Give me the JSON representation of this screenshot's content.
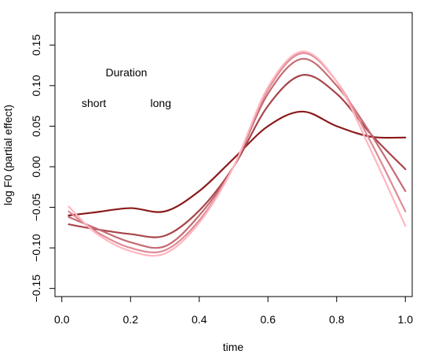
{
  "chart_data": {
    "type": "line",
    "title": "",
    "xlabel": "time",
    "ylabel": "log F0 (partial effect)",
    "xlim": [
      -0.02,
      1.02
    ],
    "ylim": [
      -0.16,
      0.19
    ],
    "xticks": [
      0.0,
      0.2,
      0.4,
      0.6,
      0.8,
      1.0
    ],
    "xtick_labels": [
      "0.0",
      "0.2",
      "0.4",
      "0.6",
      "0.8",
      "1.0"
    ],
    "yticks": [
      -0.15,
      -0.1,
      -0.05,
      0.0,
      0.05,
      0.1,
      0.15
    ],
    "ytick_labels": [
      "−0.15",
      "−0.10",
      "−0.05",
      "0.00",
      "0.05",
      "0.10",
      "0.15"
    ],
    "grid": false,
    "legend": {
      "title": "Duration",
      "low_label": "short",
      "high_label": "long",
      "placement": "top-left",
      "gradient": [
        "#8b1a1a",
        "#ffb6c1"
      ]
    },
    "x": [
      0.02,
      0.1,
      0.2,
      0.3,
      0.4,
      0.5,
      0.6,
      0.7,
      0.8,
      0.9,
      1.0
    ],
    "series": [
      {
        "color": "#8b1a1a",
        "values": [
          -0.06,
          -0.056,
          -0.051,
          -0.055,
          -0.03,
          0.01,
          0.05,
          0.068,
          0.05,
          0.037,
          0.036
        ]
      },
      {
        "color": "#a8454a",
        "values": [
          -0.071,
          -0.077,
          -0.083,
          -0.085,
          -0.054,
          0.0,
          0.075,
          0.113,
          0.09,
          0.04,
          -0.003
        ]
      },
      {
        "color": "#c56a72",
        "values": [
          -0.062,
          -0.076,
          -0.093,
          -0.098,
          -0.06,
          0.0,
          0.09,
          0.133,
          0.1,
          0.04,
          -0.03
        ]
      },
      {
        "color": "#de8a94",
        "values": [
          -0.055,
          -0.08,
          -0.1,
          -0.103,
          -0.066,
          0.0,
          0.095,
          0.14,
          0.105,
          0.03,
          -0.055
        ]
      },
      {
        "color": "#ffb6c1",
        "values": [
          -0.049,
          -0.082,
          -0.104,
          -0.107,
          -0.069,
          0.0,
          0.098,
          0.142,
          0.105,
          0.02,
          -0.073
        ]
      }
    ]
  }
}
